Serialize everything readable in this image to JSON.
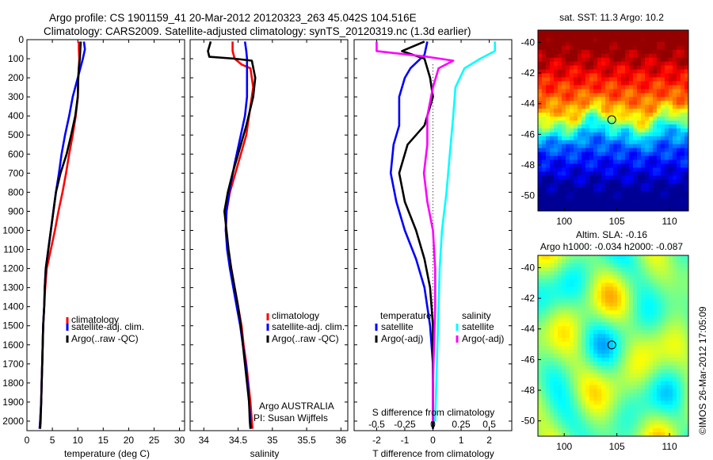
{
  "header": {
    "title_line1": "Argo profile: CS 1901159_41 20-Mar-2012 20120323_263 45.042S 104.516E",
    "title_line2": "Climatology: CARS2009. Satellite-adjusted climatology: synTS_20120319.nc (1.3d earlier)"
  },
  "footer": {
    "vertical_stamp": "©IMOS 26-Mar-2012 17:05:09"
  },
  "colors": {
    "climatology": "#ff0000",
    "satellite": "#0000ff",
    "argo": "#000000",
    "salinity_satellite": "#00ffff",
    "salinity_argo": "#ff00ff"
  },
  "chart_data": [
    {
      "id": "temperature",
      "type": "line",
      "xlabel": "temperature (deg C)",
      "ylabel": "",
      "xlim": [
        0,
        31
      ],
      "ylim": [
        2050,
        0
      ],
      "xticks": [
        0,
        5,
        10,
        15,
        20,
        25,
        30
      ],
      "yticks": [
        0,
        100,
        200,
        300,
        400,
        500,
        600,
        700,
        800,
        900,
        1000,
        1100,
        1200,
        1300,
        1400,
        1500,
        1600,
        1700,
        1800,
        1900,
        2000
      ],
      "legend_position": "lower-center",
      "series": [
        {
          "name": "climatology",
          "color": "#ff0000",
          "points": [
            [
              10.2,
              10
            ],
            [
              10.2,
              50
            ],
            [
              10.3,
              100
            ],
            [
              10.2,
              150
            ],
            [
              10.1,
              200
            ],
            [
              10.0,
              300
            ],
            [
              9.6,
              400
            ],
            [
              9.0,
              500
            ],
            [
              8.3,
              600
            ],
            [
              7.7,
              700
            ],
            [
              7.0,
              800
            ],
            [
              6.2,
              900
            ],
            [
              5.5,
              1000
            ],
            [
              4.7,
              1100
            ],
            [
              3.9,
              1200
            ],
            [
              3.6,
              1300
            ],
            [
              3.4,
              1400
            ],
            [
              3.2,
              1500
            ],
            [
              3.1,
              1600
            ],
            [
              3.0,
              1700
            ],
            [
              2.9,
              1800
            ],
            [
              2.8,
              1900
            ],
            [
              2.6,
              2000
            ],
            [
              2.5,
              2040
            ]
          ]
        },
        {
          "name": "satellite-adj. clim.",
          "color": "#0000ff",
          "points": [
            [
              11.2,
              10
            ],
            [
              11.4,
              50
            ],
            [
              11.0,
              100
            ],
            [
              10.5,
              150
            ],
            [
              10.0,
              200
            ],
            [
              9.0,
              300
            ],
            [
              8.3,
              400
            ],
            [
              7.5,
              500
            ],
            [
              6.8,
              600
            ],
            [
              6.3,
              700
            ],
            [
              5.7,
              800
            ],
            [
              5.2,
              900
            ],
            [
              4.7,
              1000
            ],
            [
              4.2,
              1100
            ],
            [
              3.7,
              1200
            ],
            [
              3.5,
              1300
            ],
            [
              3.4,
              1400
            ],
            [
              3.2,
              1500
            ],
            [
              3.1,
              1600
            ],
            [
              3.0,
              1700
            ],
            [
              2.9,
              1800
            ],
            [
              2.8,
              1900
            ],
            [
              2.6,
              2000
            ],
            [
              2.5,
              2040
            ]
          ]
        },
        {
          "name": "Argo(..raw -QC)",
          "color": "#000000",
          "points": [
            [
              10.6,
              10
            ],
            [
              10.5,
              50
            ],
            [
              10.4,
              100
            ],
            [
              10.2,
              150
            ],
            [
              10.1,
              200
            ],
            [
              10.0,
              300
            ],
            [
              9.5,
              400
            ],
            [
              8.7,
              500
            ],
            [
              7.8,
              600
            ],
            [
              6.6,
              700
            ],
            [
              5.7,
              800
            ],
            [
              5.2,
              900
            ],
            [
              4.7,
              1000
            ],
            [
              4.2,
              1100
            ],
            [
              3.7,
              1200
            ],
            [
              3.5,
              1300
            ],
            [
              3.4,
              1400
            ],
            [
              3.2,
              1500
            ],
            [
              3.1,
              1600
            ],
            [
              3.0,
              1700
            ],
            [
              2.9,
              1800
            ],
            [
              2.8,
              1900
            ],
            [
              2.7,
              2000
            ],
            [
              2.6,
              2040
            ]
          ]
        }
      ],
      "legend": [
        "climatology",
        "satellite-adj. clim.",
        "Argo(..raw -QC)"
      ]
    },
    {
      "id": "salinity",
      "type": "line",
      "xlabel": "salinity",
      "ylabel": "",
      "xlim": [
        33.8,
        36.1
      ],
      "ylim": [
        2050,
        0
      ],
      "xticks": [
        34,
        34.5,
        35,
        35.5,
        36
      ],
      "xtick_labels": [
        "34",
        "34.5",
        "35",
        "35.5",
        "36"
      ],
      "legend_position": "lower-right",
      "series": [
        {
          "name": "climatology",
          "color": "#ff0000",
          "points": [
            [
              34.42,
              10
            ],
            [
              34.42,
              60
            ],
            [
              34.45,
              100
            ],
            [
              34.55,
              130
            ],
            [
              34.68,
              150
            ],
            [
              34.72,
              250
            ],
            [
              34.68,
              350
            ],
            [
              34.62,
              500
            ],
            [
              34.5,
              650
            ],
            [
              34.38,
              800
            ],
            [
              34.33,
              900
            ],
            [
              34.32,
              1000
            ],
            [
              34.35,
              1100
            ],
            [
              34.4,
              1200
            ],
            [
              34.45,
              1300
            ],
            [
              34.5,
              1400
            ],
            [
              34.55,
              1500
            ],
            [
              34.58,
              1600
            ],
            [
              34.62,
              1700
            ],
            [
              34.65,
              1800
            ],
            [
              34.68,
              1900
            ],
            [
              34.7,
              2000
            ],
            [
              34.71,
              2040
            ]
          ]
        },
        {
          "name": "satellite-adj. clim.",
          "color": "#0000ff",
          "points": [
            [
              34.6,
              10
            ],
            [
              34.62,
              60
            ],
            [
              34.63,
              100
            ],
            [
              34.63,
              200
            ],
            [
              34.63,
              300
            ],
            [
              34.6,
              400
            ],
            [
              34.54,
              500
            ],
            [
              34.45,
              650
            ],
            [
              34.37,
              800
            ],
            [
              34.33,
              900
            ],
            [
              34.32,
              1000
            ],
            [
              34.34,
              1100
            ],
            [
              34.38,
              1200
            ],
            [
              34.43,
              1300
            ],
            [
              34.48,
              1400
            ],
            [
              34.53,
              1500
            ],
            [
              34.57,
              1600
            ],
            [
              34.61,
              1700
            ],
            [
              34.64,
              1800
            ],
            [
              34.66,
              1900
            ],
            [
              34.68,
              2000
            ],
            [
              34.69,
              2040
            ]
          ]
        },
        {
          "name": "Argo(..raw -QC)",
          "color": "#000000",
          "points": [
            [
              34.1,
              10
            ],
            [
              34.06,
              60
            ],
            [
              34.08,
              90
            ],
            [
              34.45,
              100
            ],
            [
              34.7,
              110
            ],
            [
              34.75,
              200
            ],
            [
              34.72,
              300
            ],
            [
              34.62,
              450
            ],
            [
              34.5,
              600
            ],
            [
              34.42,
              700
            ],
            [
              34.35,
              800
            ],
            [
              34.3,
              900
            ],
            [
              34.33,
              1000
            ],
            [
              34.36,
              1100
            ],
            [
              34.4,
              1200
            ],
            [
              34.45,
              1300
            ],
            [
              34.5,
              1400
            ],
            [
              34.54,
              1500
            ],
            [
              34.57,
              1600
            ],
            [
              34.6,
              1700
            ],
            [
              34.63,
              1800
            ],
            [
              34.66,
              1900
            ],
            [
              34.67,
              2000
            ],
            [
              34.68,
              2040
            ]
          ]
        }
      ],
      "legend": [
        "climatology",
        "satellite-adj. clim.",
        "Argo(..raw -QC)"
      ],
      "annotation": [
        "Argo AUSTRALIA",
        "PI: Susan Wijffels"
      ]
    },
    {
      "id": "difference",
      "type": "line",
      "xlabel": "T difference from climatology",
      "xlabel_top": "S difference from climatology",
      "ylabel": "",
      "xlim": [
        -2.8,
        2.8
      ],
      "ylim": [
        2050,
        0
      ],
      "xticks": [
        -2,
        -1,
        0,
        1,
        2
      ],
      "xtick_labels": [
        "-2",
        "-1",
        "0",
        "1",
        "2"
      ],
      "sticks": [
        -0.5,
        -0.25,
        0,
        0.25,
        0.5
      ],
      "stick_labels": [
        "-0.5",
        "-0.25",
        "0",
        "0.25",
        "0.5"
      ],
      "legend_groups": [
        "temperature",
        "salinity"
      ],
      "series": [
        {
          "name": "satellite",
          "group": "temperature",
          "color": "#0000ff",
          "points": [
            [
              -0.2,
              10
            ],
            [
              -0.3,
              80
            ],
            [
              -0.8,
              150
            ],
            [
              -1.0,
              200
            ],
            [
              -1.2,
              300
            ],
            [
              -1.2,
              450
            ],
            [
              -1.4,
              550
            ],
            [
              -1.5,
              700
            ],
            [
              -1.3,
              850
            ],
            [
              -1.0,
              1000
            ],
            [
              -0.6,
              1150
            ],
            [
              -0.3,
              1300
            ],
            [
              -0.1,
              1500
            ],
            [
              0,
              1700
            ],
            [
              0,
              2040
            ]
          ]
        },
        {
          "name": "Argo(-adj)",
          "group": "temperature",
          "color": "#000000",
          "points": [
            [
              -0.3,
              10
            ],
            [
              -1.1,
              60
            ],
            [
              -0.3,
              100
            ],
            [
              -0.1,
              200
            ],
            [
              0,
              300
            ],
            [
              -0.3,
              450
            ],
            [
              -0.9,
              550
            ],
            [
              -1.2,
              700
            ],
            [
              -1.0,
              850
            ],
            [
              -0.6,
              1000
            ],
            [
              -0.3,
              1150
            ],
            [
              -0.1,
              1300
            ],
            [
              0,
              1500
            ],
            [
              0,
              1700
            ],
            [
              0,
              2040
            ]
          ]
        },
        {
          "name": "satellite",
          "group": "salinity",
          "color": "#00ffff",
          "points": [
            [
              0.55,
              10
            ],
            [
              0.55,
              60
            ],
            [
              0.42,
              100
            ],
            [
              0.28,
              150
            ],
            [
              0.2,
              250
            ],
            [
              0.18,
              400
            ],
            [
              0.15,
              600
            ],
            [
              0.12,
              800
            ],
            [
              0.08,
              1000
            ],
            [
              0.06,
              1200
            ],
            [
              0.05,
              1400
            ],
            [
              0.04,
              1600
            ],
            [
              0.03,
              1800
            ],
            [
              0.02,
              2000
            ]
          ]
        },
        {
          "name": "Argo(-adj)",
          "group": "salinity",
          "color": "#ff00ff",
          "points": [
            [
              -0.5,
              10
            ],
            [
              -0.5,
              60
            ],
            [
              -0.05,
              90
            ],
            [
              0.18,
              110
            ],
            [
              0.05,
              150
            ],
            [
              0.0,
              250
            ],
            [
              -0.05,
              400
            ],
            [
              -0.05,
              550
            ],
            [
              -0.08,
              700
            ],
            [
              -0.05,
              850
            ],
            [
              0.0,
              1000
            ],
            [
              0.02,
              1200
            ],
            [
              0.02,
              1400
            ],
            [
              0.01,
              1600
            ],
            [
              0.0,
              1800
            ],
            [
              0.0,
              2000
            ]
          ]
        }
      ],
      "legend": [
        "temperature",
        "satellite",
        "Argo(-adj)",
        "salinity",
        "satellite",
        "Argo(-adj)"
      ]
    },
    {
      "id": "sst_map",
      "type": "heatmap",
      "title": "sat. SST: 11.3 Argo: 10.2",
      "xlim": [
        97.5,
        111.8
      ],
      "ylim": [
        -51,
        -39.2
      ],
      "xticks": [
        100,
        105,
        110
      ],
      "yticks": [
        -40,
        -42,
        -44,
        -46,
        -48,
        -50
      ],
      "marker": [
        104.516,
        -45.042
      ]
    },
    {
      "id": "sla_map",
      "type": "heatmap",
      "title_line1": "Altim. SLA: -0.16",
      "title_line2": "Argo h1000: -0.034 h2000: -0.087",
      "xlim": [
        97.5,
        111.8
      ],
      "ylim": [
        -51,
        -39.2
      ],
      "xticks": [
        100,
        105,
        110
      ],
      "yticks": [
        -40,
        -42,
        -44,
        -46,
        -48,
        -50
      ],
      "marker": [
        104.516,
        -45.042
      ]
    }
  ]
}
